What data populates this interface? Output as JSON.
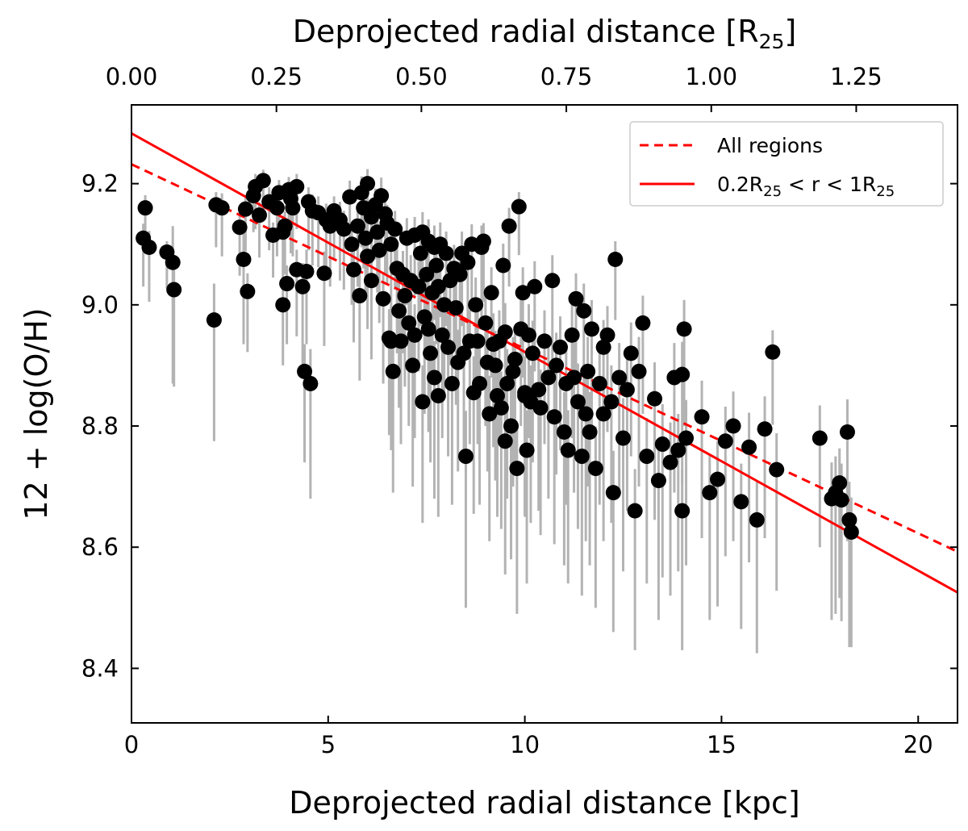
{
  "chart_data": {
    "type": "scatter",
    "xlabel": "Deprojected radial distance [kpc]",
    "xlabel_top": {
      "text": "Deprojected radial distance [R",
      "sub": "25",
      "suffix": "]"
    },
    "ylabel": "12 + log(O/H)",
    "xlim": [
      0,
      21
    ],
    "ylim": [
      8.31,
      9.33
    ],
    "x_ticks": [
      0,
      5,
      10,
      15,
      20
    ],
    "y_ticks": [
      8.4,
      8.6,
      8.8,
      9.0,
      9.2
    ],
    "top_axis": {
      "kpc_per_unit": 14.74,
      "ticks": [
        "0.00",
        "0.25",
        "0.50",
        "0.75",
        "1.00",
        "1.25"
      ]
    },
    "grid": false,
    "legend_position": "top-right",
    "colors": {
      "points": "#000000",
      "errorbars": "#b3b3b3",
      "fit": "#ff0000"
    },
    "fits": [
      {
        "name": "All regions",
        "style": "dashed",
        "intercept": 9.232,
        "slope": -0.03045
      },
      {
        "name": {
          "prefix": "0.2R",
          "sub1": "25",
          "middle": " < r < 1R",
          "sub2": "25"
        },
        "style": "solid",
        "intercept": 9.283,
        "slope": -0.03608
      }
    ],
    "points": [
      [
        0.3,
        9.11,
        0.08
      ],
      [
        0.35,
        9.16,
        0.07
      ],
      [
        0.45,
        9.095,
        0.09
      ],
      [
        0.9,
        9.087,
        0.06
      ],
      [
        1.05,
        9.07,
        0.2
      ],
      [
        1.08,
        9.025,
        0.16
      ],
      [
        2.1,
        8.975,
        0.2
      ],
      [
        2.15,
        9.165,
        0.07
      ],
      [
        2.3,
        9.16,
        0.08
      ],
      [
        2.75,
        9.128,
        0.08
      ],
      [
        2.85,
        9.075,
        0.14
      ],
      [
        2.95,
        9.022,
        0.1
      ],
      [
        2.9,
        9.158,
        0.07
      ],
      [
        3.1,
        9.18,
        0.06
      ],
      [
        3.15,
        9.195,
        0.07
      ],
      [
        3.25,
        9.148,
        0.07
      ],
      [
        3.35,
        9.205,
        0.06
      ],
      [
        3.5,
        9.17,
        0.08
      ],
      [
        3.6,
        9.115,
        0.07
      ],
      [
        3.7,
        9.16,
        0.08
      ],
      [
        3.75,
        9.185,
        0.07
      ],
      [
        3.85,
        9.12,
        0.09
      ],
      [
        3.9,
        9.13,
        0.08
      ],
      [
        3.85,
        9.0,
        0.1
      ],
      [
        3.95,
        9.035,
        0.1
      ],
      [
        4.0,
        9.19,
        0.07
      ],
      [
        4.05,
        9.175,
        0.09
      ],
      [
        4.1,
        9.16,
        0.08
      ],
      [
        4.2,
        9.195,
        0.07
      ],
      [
        4.2,
        9.058,
        0.11
      ],
      [
        4.35,
        9.03,
        0.13
      ],
      [
        4.4,
        8.89,
        0.15
      ],
      [
        4.45,
        9.055,
        0.12
      ],
      [
        4.5,
        9.17,
        0.08
      ],
      [
        4.55,
        8.87,
        0.19
      ],
      [
        4.6,
        9.155,
        0.09
      ],
      [
        4.75,
        9.152,
        0.09
      ],
      [
        4.9,
        9.052,
        0.12
      ],
      [
        4.95,
        9.14,
        0.09
      ],
      [
        5.05,
        9.13,
        0.1
      ],
      [
        5.15,
        9.155,
        0.08
      ],
      [
        5.3,
        9.14,
        0.1
      ],
      [
        5.4,
        9.125,
        0.1
      ],
      [
        5.55,
        9.178,
        0.09
      ],
      [
        5.65,
        9.058,
        0.12
      ],
      [
        5.6,
        9.1,
        0.1
      ],
      [
        5.75,
        9.13,
        0.1
      ],
      [
        5.8,
        9.015,
        0.14
      ],
      [
        5.85,
        9.185,
        0.09
      ],
      [
        5.9,
        9.16,
        0.1
      ],
      [
        5.95,
        9.11,
        0.1
      ],
      [
        6.0,
        9.2,
        0.08
      ],
      [
        6.0,
        9.08,
        0.12
      ],
      [
        6.1,
        9.145,
        0.1
      ],
      [
        6.1,
        9.04,
        0.13
      ],
      [
        6.2,
        9.165,
        0.09
      ],
      [
        6.25,
        9.12,
        0.1
      ],
      [
        6.3,
        9.09,
        0.12
      ],
      [
        6.35,
        9.18,
        0.1
      ],
      [
        6.4,
        9.01,
        0.14
      ],
      [
        6.45,
        9.15,
        0.1
      ],
      [
        6.5,
        9.135,
        0.1
      ],
      [
        6.55,
        8.945,
        0.16
      ],
      [
        6.6,
        8.94,
        0.18
      ],
      [
        6.6,
        9.1,
        0.12
      ],
      [
        6.65,
        8.89,
        0.2
      ],
      [
        6.7,
        9.125,
        0.1
      ],
      [
        6.75,
        9.06,
        0.14
      ],
      [
        6.8,
        8.99,
        0.16
      ],
      [
        6.85,
        8.94,
        0.17
      ],
      [
        6.9,
        9.05,
        0.13
      ],
      [
        6.95,
        9.015,
        0.15
      ],
      [
        7.0,
        9.11,
        0.11
      ],
      [
        7.05,
        8.97,
        0.17
      ],
      [
        7.1,
        9.04,
        0.14
      ],
      [
        7.15,
        8.9,
        0.2
      ],
      [
        7.2,
        9.115,
        0.1
      ],
      [
        7.2,
        8.95,
        0.17
      ],
      [
        7.3,
        9.03,
        0.14
      ],
      [
        7.35,
        9.085,
        0.12
      ],
      [
        7.4,
        9.12,
        0.11
      ],
      [
        7.4,
        8.84,
        0.2
      ],
      [
        7.45,
        8.98,
        0.16
      ],
      [
        7.5,
        9.05,
        0.14
      ],
      [
        7.55,
        9.105,
        0.12
      ],
      [
        7.55,
        8.96,
        0.17
      ],
      [
        7.6,
        8.92,
        0.18
      ],
      [
        7.65,
        9.02,
        0.15
      ],
      [
        7.7,
        9.095,
        0.12
      ],
      [
        7.7,
        8.88,
        0.2
      ],
      [
        7.75,
        9.065,
        0.13
      ],
      [
        7.8,
        8.85,
        0.2
      ],
      [
        7.8,
        9.03,
        0.15
      ],
      [
        7.85,
        9.1,
        0.12
      ],
      [
        7.9,
        8.95,
        0.17
      ],
      [
        7.95,
        9.0,
        0.15
      ],
      [
        8.0,
        9.085,
        0.12
      ],
      [
        8.05,
        8.93,
        0.18
      ],
      [
        8.1,
        9.04,
        0.14
      ],
      [
        8.15,
        8.87,
        0.2
      ],
      [
        8.2,
        9.06,
        0.13
      ],
      [
        8.25,
        8.995,
        0.16
      ],
      [
        8.3,
        8.905,
        0.18
      ],
      [
        8.35,
        9.05,
        0.14
      ],
      [
        8.4,
        9.085,
        0.12
      ],
      [
        8.45,
        8.92,
        0.18
      ],
      [
        8.5,
        8.75,
        0.25
      ],
      [
        8.55,
        9.07,
        0.12
      ],
      [
        8.6,
        8.94,
        0.17
      ],
      [
        8.65,
        9.1,
        0.11
      ],
      [
        8.7,
        8.855,
        0.2
      ],
      [
        8.75,
        9.0,
        0.15
      ],
      [
        8.8,
        8.94,
        0.17
      ],
      [
        8.85,
        8.87,
        0.2
      ],
      [
        8.9,
        9.095,
        0.12
      ],
      [
        8.95,
        9.105,
        0.1
      ],
      [
        9.0,
        8.97,
        0.17
      ],
      [
        9.05,
        8.905,
        0.18
      ],
      [
        9.1,
        8.82,
        0.21
      ],
      [
        9.15,
        9.02,
        0.14
      ],
      [
        9.2,
        8.935,
        0.17
      ],
      [
        9.25,
        8.9,
        0.19
      ],
      [
        9.3,
        8.85,
        0.2
      ],
      [
        9.35,
        8.94,
        0.17
      ],
      [
        9.4,
        8.83,
        0.2
      ],
      [
        9.45,
        9.065,
        0.12
      ],
      [
        9.5,
        8.955,
        0.16
      ],
      [
        9.55,
        8.87,
        0.19
      ],
      [
        9.6,
        9.13,
        0.1
      ],
      [
        9.65,
        8.8,
        0.22
      ],
      [
        9.7,
        8.89,
        0.19
      ],
      [
        9.75,
        8.91,
        0.18
      ],
      [
        9.8,
        8.73,
        0.24
      ],
      [
        9.85,
        9.162,
        0.08
      ],
      [
        9.9,
        8.96,
        0.16
      ],
      [
        9.95,
        9.02,
        0.14
      ],
      [
        10.0,
        8.85,
        0.2
      ],
      [
        10.05,
        8.76,
        0.22
      ],
      [
        10.1,
        8.95,
        0.17
      ],
      [
        10.15,
        8.84,
        0.2
      ],
      [
        10.2,
        8.92,
        0.18
      ],
      [
        10.25,
        9.03,
        0.14
      ],
      [
        10.35,
        8.86,
        0.2
      ],
      [
        10.4,
        8.83,
        0.21
      ],
      [
        10.5,
        8.94,
        0.17
      ],
      [
        10.6,
        8.88,
        0.2
      ],
      [
        10.7,
        9.04,
        0.14
      ],
      [
        10.75,
        8.815,
        0.21
      ],
      [
        10.8,
        8.9,
        0.18
      ],
      [
        10.9,
        8.93,
        0.17
      ],
      [
        11.0,
        8.79,
        0.22
      ],
      [
        11.05,
        8.87,
        0.2
      ],
      [
        11.1,
        8.76,
        0.22
      ],
      [
        11.2,
        8.95,
        0.17
      ],
      [
        11.25,
        8.88,
        0.19
      ],
      [
        11.3,
        9.01,
        0.14
      ],
      [
        11.35,
        8.84,
        0.21
      ],
      [
        11.45,
        8.75,
        0.23
      ],
      [
        11.5,
        8.99,
        0.15
      ],
      [
        11.55,
        8.82,
        0.21
      ],
      [
        11.6,
        8.89,
        0.19
      ],
      [
        11.65,
        8.79,
        0.22
      ],
      [
        11.7,
        8.96,
        0.16
      ],
      [
        11.8,
        8.73,
        0.23
      ],
      [
        11.9,
        8.87,
        0.2
      ],
      [
        12.0,
        8.82,
        0.21
      ],
      [
        12.1,
        8.95,
        0.16
      ],
      [
        12.2,
        8.84,
        0.2
      ],
      [
        12.25,
        8.69,
        0.23
      ],
      [
        12.3,
        9.075,
        0.1
      ],
      [
        12.4,
        8.88,
        0.19
      ],
      [
        12.5,
        8.78,
        0.22
      ],
      [
        12.6,
        8.86,
        0.2
      ],
      [
        12.7,
        8.92,
        0.17
      ],
      [
        12.8,
        8.66,
        0.23
      ],
      [
        12.9,
        8.89,
        0.19
      ],
      [
        13.0,
        8.97,
        0.15
      ],
      [
        13.1,
        8.75,
        0.21
      ],
      [
        13.3,
        8.845,
        0.2
      ],
      [
        13.4,
        8.71,
        0.23
      ],
      [
        13.5,
        8.77,
        0.22
      ],
      [
        13.7,
        8.74,
        0.22
      ],
      [
        13.8,
        8.88,
        0.19
      ],
      [
        13.9,
        8.76,
        0.2
      ],
      [
        14.0,
        8.885,
        0.18
      ],
      [
        14.0,
        8.66,
        0.23
      ],
      [
        14.05,
        8.96,
        0.16
      ],
      [
        14.1,
        8.78,
        0.21
      ],
      [
        14.5,
        8.815,
        0.2
      ],
      [
        14.7,
        8.69,
        0.21
      ],
      [
        14.9,
        8.712,
        0.21
      ],
      [
        15.1,
        8.775,
        0.19
      ],
      [
        15.3,
        8.8,
        0.19
      ],
      [
        15.5,
        8.675,
        0.21
      ],
      [
        15.7,
        8.765,
        0.19
      ],
      [
        15.9,
        8.645,
        0.22
      ],
      [
        16.1,
        8.795,
        0.18
      ],
      [
        16.3,
        8.922,
        0.12
      ],
      [
        16.4,
        8.728,
        0.2
      ],
      [
        17.5,
        8.78,
        0.18
      ],
      [
        17.8,
        8.68,
        0.2
      ],
      [
        17.9,
        8.69,
        0.2
      ],
      [
        18.0,
        8.706,
        0.19
      ],
      [
        18.05,
        8.678,
        0.2
      ],
      [
        18.2,
        8.79,
        0.18
      ],
      [
        18.25,
        8.645,
        0.21
      ],
      [
        18.3,
        8.625,
        0.19
      ],
      [
        9.5,
        8.775,
        0.22
      ],
      [
        10.0,
        8.855,
        0.2
      ],
      [
        12.0,
        8.93,
        0.15
      ]
    ]
  }
}
